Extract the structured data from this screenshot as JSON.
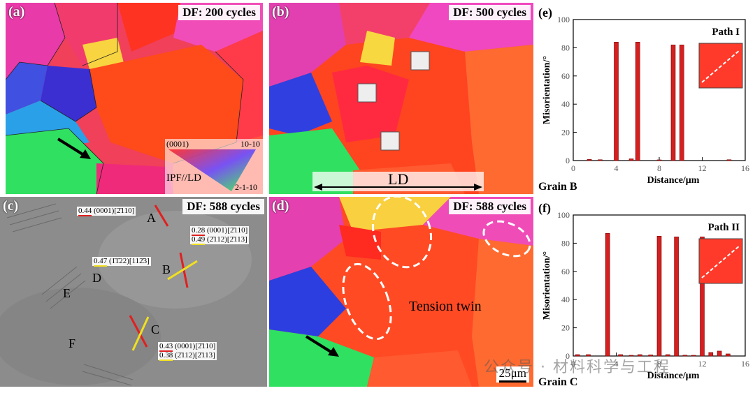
{
  "figure": {
    "panel_a": {
      "label": "(a)",
      "cycles": "DF: 200 cycles",
      "ipf_top_left": "(0001)",
      "ipf_top_right": "10-10",
      "ipf_bottom": "2-1-10",
      "ipf_axis": "IPF//LD"
    },
    "panel_b": {
      "label": "(b)",
      "cycles": "DF: 500 cycles",
      "ld": "LD"
    },
    "panel_c": {
      "label": "(c)",
      "cycles": "DF: 588 cycles",
      "annotations": [
        {
          "value": "0.44",
          "text": "(0001)[2̄110]"
        },
        {
          "value": "0.28",
          "text": "(0001)[2̄110]"
        },
        {
          "value": "0.49",
          "text": "(2̄112)[2̄113]"
        },
        {
          "value": "0.47",
          "text": "(1̄1̄22)[112̄3]"
        },
        {
          "value": "0.43",
          "text": "(0001)[2̄110]"
        },
        {
          "value": "0.38",
          "text": "(2̄112)[2̄113]"
        }
      ],
      "grains": [
        "A",
        "B",
        "C",
        "D",
        "E",
        "F"
      ]
    },
    "panel_d": {
      "label": "(d)",
      "cycles": "DF: 588 cycles",
      "twin": "Tension twin",
      "scale": "25μm"
    },
    "watermark": "公众号 · 材料科学与工程"
  },
  "chart_data": [
    {
      "panel": "(e)",
      "type": "bar",
      "title": "Path I",
      "grain": "Grain B",
      "xlabel": "Distance/μm",
      "ylabel": "Misorientation/°",
      "xlim": [
        0,
        16
      ],
      "ylim": [
        0,
        100
      ],
      "xticks": [
        0,
        4,
        8,
        12,
        16
      ],
      "yticks": [
        0,
        20,
        40,
        60,
        80,
        100
      ],
      "x": [
        1.5,
        2.5,
        4.0,
        5.4,
        6.0,
        8.0,
        9.3,
        10.1,
        14.5
      ],
      "values": [
        0.8,
        0.6,
        84,
        1.2,
        84,
        0.5,
        82,
        82,
        0.6
      ]
    },
    {
      "panel": "(f)",
      "type": "bar",
      "title": "Path II",
      "grain": "Grain C",
      "xlabel": "Distance/μm",
      "ylabel": "Misorientation/°",
      "xlim": [
        0,
        16
      ],
      "ylim": [
        0,
        100
      ],
      "xticks": [
        0,
        4,
        8,
        12,
        16
      ],
      "yticks": [
        0,
        20,
        40,
        60,
        80,
        100
      ],
      "x": [
        0.4,
        1.4,
        3.2,
        4.4,
        5.4,
        6.2,
        7.2,
        8.0,
        8.8,
        9.6,
        10.4,
        11.2,
        12.0,
        12.8,
        13.6,
        14.4
      ],
      "values": [
        1,
        1,
        87,
        1,
        0.5,
        1,
        0.8,
        85,
        1,
        84.5,
        0.6,
        0.5,
        84.5,
        2.5,
        3.5,
        1.5
      ]
    }
  ]
}
